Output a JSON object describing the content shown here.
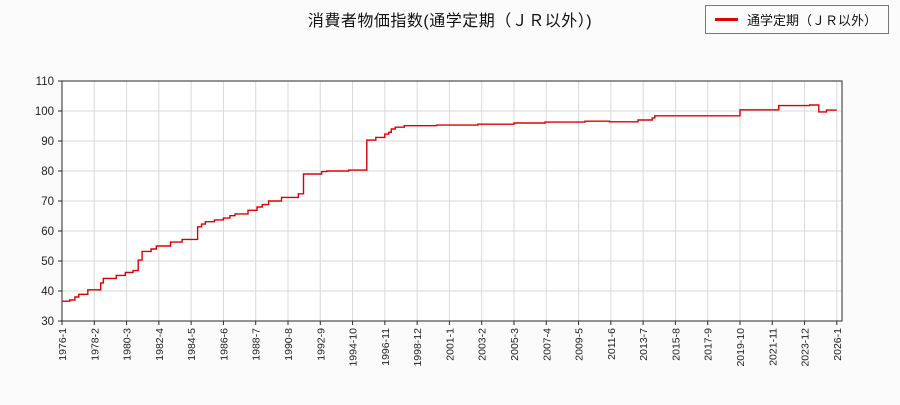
{
  "title": "消費者物価指数(通学定期（ＪＲ以外）)",
  "legend": {
    "label": "通学定期（ＪＲ以外）"
  },
  "colors": {
    "series": "#dd0000",
    "grid": "#d9d9d9",
    "axis": "#2a2a2a",
    "plot_bg": "#ffffff",
    "page_bg": "#fbfbfb"
  },
  "chart_data": {
    "type": "line",
    "line_style": "step-after",
    "title": "消費者物価指数(通学定期（ＪＲ以外）)",
    "xlabel": "",
    "ylabel": "",
    "x_start": "1976-01",
    "x_end": "2026-01",
    "x_tick_interval_months": 25,
    "x_tick_labels": [
      "1976-1",
      "1978-2",
      "1980-3",
      "1982-4",
      "1984-5",
      "1986-6",
      "1988-7",
      "1990-8",
      "1992-9",
      "1994-10",
      "1996-11",
      "1998-12",
      "2001-1",
      "2003-2",
      "2005-3",
      "2007-4",
      "2009-5",
      "2011-6",
      "2013-7",
      "2015-8",
      "2017-9",
      "2019-10",
      "2021-11",
      "2023-12",
      "2026-1"
    ],
    "ylim": [
      30,
      110
    ],
    "y_ticks": [
      30,
      40,
      50,
      60,
      70,
      80,
      90,
      100,
      110
    ],
    "grid": true,
    "legend_position": "top-right",
    "series": [
      {
        "name": "通学定期（ＪＲ以外）",
        "color": "#dd0000",
        "points": [
          [
            "1976-01",
            36.6
          ],
          [
            "1976-07",
            37.0
          ],
          [
            "1976-11",
            38.0
          ],
          [
            "1977-02",
            38.9
          ],
          [
            "1977-09",
            40.4
          ],
          [
            "1978-07",
            42.7
          ],
          [
            "1978-09",
            44.2
          ],
          [
            "1979-07",
            45.2
          ],
          [
            "1980-02",
            46.2
          ],
          [
            "1980-08",
            46.8
          ],
          [
            "1980-12",
            50.3
          ],
          [
            "1981-03",
            53.2
          ],
          [
            "1981-10",
            54.0
          ],
          [
            "1982-02",
            55.0
          ],
          [
            "1983-01",
            56.3
          ],
          [
            "1983-10",
            57.2
          ],
          [
            "1984-10",
            61.4
          ],
          [
            "1985-01",
            62.3
          ],
          [
            "1985-04",
            63.1
          ],
          [
            "1985-11",
            63.7
          ],
          [
            "1986-06",
            64.3
          ],
          [
            "1986-11",
            65.1
          ],
          [
            "1987-03",
            65.7
          ],
          [
            "1988-01",
            66.9
          ],
          [
            "1988-08",
            68.0
          ],
          [
            "1988-12",
            68.8
          ],
          [
            "1989-05",
            70.0
          ],
          [
            "1990-03",
            71.2
          ],
          [
            "1991-04",
            72.4
          ],
          [
            "1991-08",
            79.0
          ],
          [
            "1992-10",
            79.8
          ],
          [
            "1993-02",
            80.0
          ],
          [
            "1994-07",
            80.3
          ],
          [
            "1995-09",
            90.3
          ],
          [
            "1996-04",
            91.2
          ],
          [
            "1996-11",
            92.3
          ],
          [
            "1997-02",
            92.9
          ],
          [
            "1997-04",
            94.0
          ],
          [
            "1997-07",
            94.6
          ],
          [
            "1998-02",
            95.1
          ],
          [
            "2000-03",
            95.3
          ],
          [
            "2002-11",
            95.6
          ],
          [
            "2005-03",
            96.0
          ],
          [
            "2007-03",
            96.3
          ],
          [
            "2009-10",
            96.6
          ],
          [
            "2011-05",
            96.4
          ],
          [
            "2013-03",
            97.0
          ],
          [
            "2014-02",
            97.7
          ],
          [
            "2014-04",
            98.4
          ],
          [
            "2019-10",
            100.4
          ],
          [
            "2022-04",
            101.8
          ],
          [
            "2024-04",
            102.0
          ],
          [
            "2024-11",
            99.7
          ],
          [
            "2025-05",
            100.3
          ],
          [
            "2026-01",
            100.3
          ]
        ]
      }
    ]
  }
}
